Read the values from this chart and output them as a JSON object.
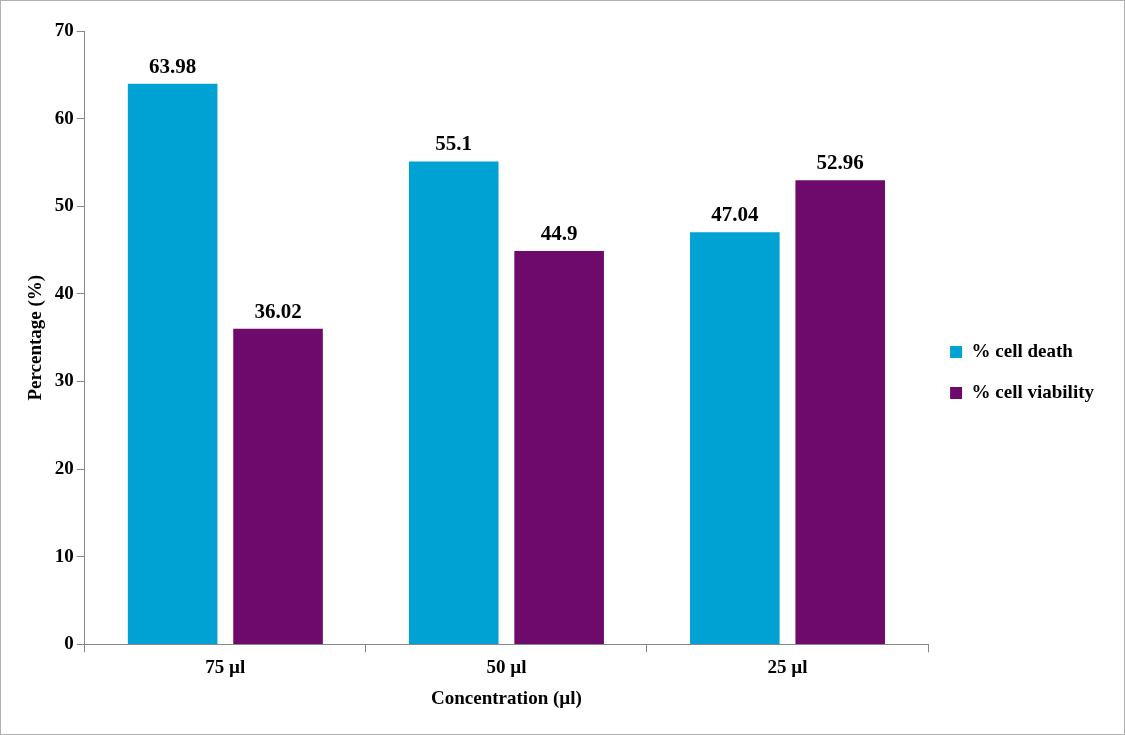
{
  "chart_data": {
    "type": "bar",
    "xlabel": "Concentration (µl)",
    "ylabel": "Percentage (%)",
    "categories": [
      "75 µl",
      "50 µl",
      "25 µl"
    ],
    "series": [
      {
        "name": "% cell death",
        "color": "#00a2d4",
        "values": [
          63.98,
          55.1,
          47.04
        ]
      },
      {
        "name": "% cell viability",
        "color": "#6d0a6b",
        "values": [
          36.02,
          44.9,
          52.96
        ]
      }
    ],
    "ylim": [
      0,
      70
    ],
    "yticks": [
      0,
      10,
      20,
      30,
      40,
      50,
      60,
      70
    ],
    "grid": false,
    "legend": "right",
    "data_labels": true
  }
}
